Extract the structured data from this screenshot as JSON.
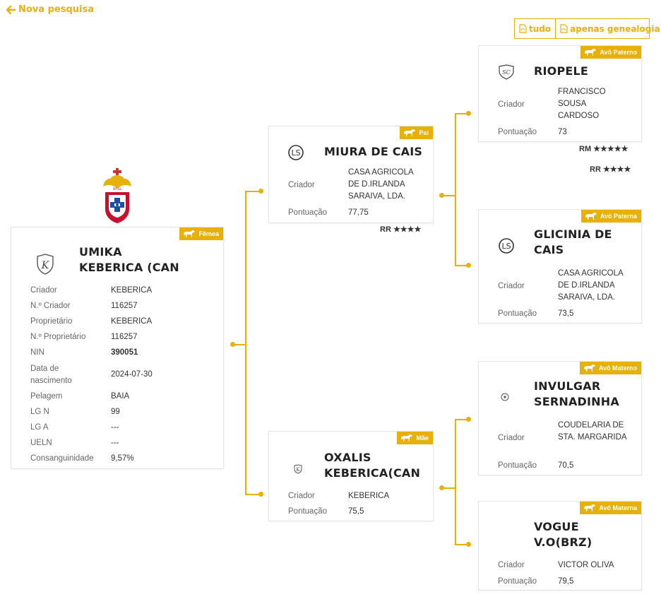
{
  "nav": {
    "back_label": "Nova pesquisa"
  },
  "pdf": {
    "all_label": "tudo",
    "genealogy_label": "apenas genealogia"
  },
  "colors": {
    "accent": "#e7b10a"
  },
  "subject": {
    "badge": "Fêmea",
    "name": "UMIKA KEBERICA (CAN",
    "fields": [
      {
        "label": "Criador",
        "value": "KEBERICA"
      },
      {
        "label": "N.º Criador",
        "value": "116257"
      },
      {
        "label": "Proprietário",
        "value": "KEBERICA"
      },
      {
        "label": "N.º Proprietário",
        "value": "116257"
      },
      {
        "label": "NIN",
        "value": "390051"
      },
      {
        "label": "Data de nascimento",
        "value": "2024-07-30"
      },
      {
        "label": "Pelagem",
        "value": "BAIA"
      },
      {
        "label": "LG N",
        "value": "99"
      },
      {
        "label": "LG A",
        "value": "---"
      },
      {
        "label": "UELN",
        "value": "---"
      },
      {
        "label": "Consanguinidade",
        "value": "9,57%"
      }
    ]
  },
  "sire": {
    "badge": "Pai",
    "name": "MIURA DE CAIS",
    "breeder_label": "Criador",
    "breeder": "CASA AGRICOLA DE D.IRLANDA SARAIVA, LDA.",
    "score_label": "Pontuação",
    "score": "77,75",
    "rating": "RR ★★★★"
  },
  "dam": {
    "badge": "Mãe",
    "name": "OXALIS KEBERICA(CAN",
    "breeder_label": "Criador",
    "breeder": "KEBERICA",
    "score_label": "Pontuação",
    "score": "75,5"
  },
  "pat_grandsire": {
    "badge": "Avô Paterno",
    "name": "RIOPELE",
    "breeder_label": "Criador",
    "breeder": "FRANCISCO SOUSA CARDOSO",
    "score_label": "Pontuação",
    "score": "73",
    "rating1": "RM ★★★★★",
    "rating2": "RR ★★★★"
  },
  "pat_granddam": {
    "badge": "Avó Paterna",
    "name": "GLICINIA DE CAIS",
    "breeder_label": "Criador",
    "breeder": "CASA AGRICOLA DE D.IRLANDA SARAIVA, LDA.",
    "score_label": "Pontuação",
    "score": "73,5"
  },
  "mat_grandsire": {
    "badge": "Avô Materno",
    "name": "INVULGAR SERNADINHA",
    "breeder_label": "Criador",
    "breeder": "COUDELARIA DE STA. MARGARIDA",
    "score_label": "Pontuação",
    "score": "70,5"
  },
  "mat_granddam": {
    "badge": "Avó Materna",
    "name": "VOGUE V.O(BRZ)",
    "breeder_label": "Criador",
    "breeder": "VICTOR OLIVA",
    "score_label": "Pontuação",
    "score": "79,5"
  }
}
